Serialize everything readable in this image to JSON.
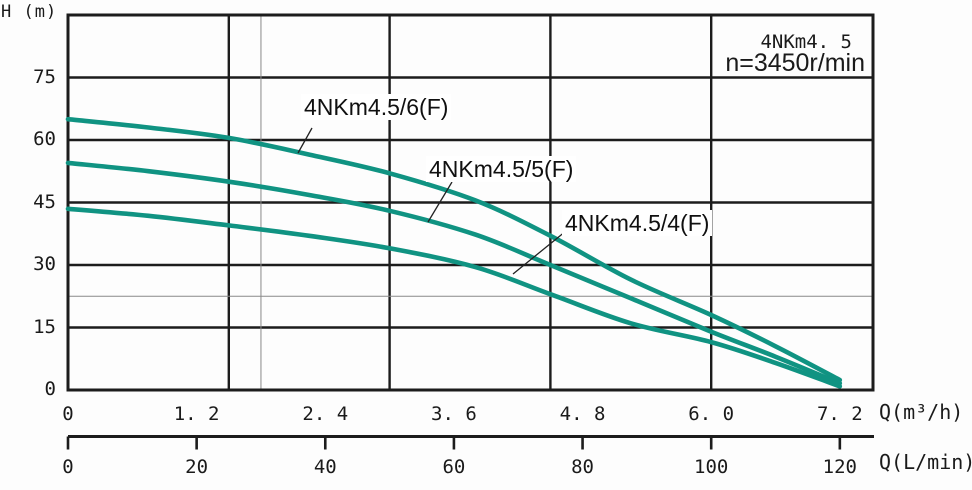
{
  "y_axis_title": "H (m)",
  "annotations": {
    "model": "4NKm4. 5",
    "speed": "n=3450r/min"
  },
  "axis_unit_labels": {
    "flow_m3h": "Q(m³/h)",
    "flow_lmin": "Q(L/min)"
  },
  "colors": {
    "curve": "#109382",
    "grid": "#1c1c1c",
    "reference_line": "#8a8a8a",
    "text": "#1a1a1a"
  },
  "chart_data": {
    "type": "line",
    "title": "4NKm4.5 pump performance curves, n=3450 r/min",
    "ylabel": "H (m)",
    "xlabel_primary": "Q(m³/h)",
    "xlabel_secondary": "Q(L/min)",
    "x_range_m3h": [
      0,
      7.51
    ],
    "y_range_m": [
      0,
      90
    ],
    "grid": "on",
    "grid_x_step_m3h": 1.5,
    "grid_y_step_m": 15,
    "y_ticks": [
      {
        "value": 75,
        "label": "75"
      },
      {
        "value": 60,
        "label": "60"
      },
      {
        "value": 45,
        "label": "45"
      },
      {
        "value": 30,
        "label": "30"
      },
      {
        "value": 15,
        "label": "15"
      },
      {
        "value": 0,
        "label": "0"
      }
    ],
    "x_ticks_m3h": [
      {
        "value": 0,
        "label": "0"
      },
      {
        "value": 1.2,
        "label": "1. 2"
      },
      {
        "value": 2.4,
        "label": "2. 4"
      },
      {
        "value": 3.6,
        "label": "3. 6"
      },
      {
        "value": 4.8,
        "label": "4. 8"
      },
      {
        "value": 6.0,
        "label": "6. 0"
      },
      {
        "value": 7.2,
        "label": "7. 2"
      }
    ],
    "x_ticks_lmin": [
      {
        "value": 0,
        "q_m3h": 0,
        "label": "0"
      },
      {
        "value": 20,
        "q_m3h": 1.2,
        "label": "20"
      },
      {
        "value": 40,
        "q_m3h": 2.4,
        "label": "40"
      },
      {
        "value": 60,
        "q_m3h": 3.6,
        "label": "60"
      },
      {
        "value": 80,
        "q_m3h": 4.8,
        "label": "80"
      },
      {
        "value": 100,
        "q_m3h": 6.0,
        "label": "100"
      },
      {
        "value": 120,
        "q_m3h": 7.2,
        "label": "120"
      }
    ],
    "reference_lines": {
      "vertical_q_m3h": 1.8,
      "horizontal_h_m": 22.5
    },
    "series": [
      {
        "name": "4NKm4.5/6(F)",
        "points": [
          [
            0,
            65
          ],
          [
            0.75,
            63
          ],
          [
            1.5,
            60.5
          ],
          [
            2.25,
            56.5
          ],
          [
            3,
            52
          ],
          [
            3.8,
            45.5
          ],
          [
            4.5,
            37
          ],
          [
            5.25,
            26.5
          ],
          [
            6,
            18
          ],
          [
            6.6,
            10.5
          ],
          [
            7.2,
            2.4
          ]
        ]
      },
      {
        "name": "4NKm4.5/5(F)",
        "points": [
          [
            0,
            54.5
          ],
          [
            0.75,
            52.5
          ],
          [
            1.5,
            50
          ],
          [
            2.25,
            46.8
          ],
          [
            3,
            43
          ],
          [
            3.8,
            37.3
          ],
          [
            4.5,
            30
          ],
          [
            5.25,
            22
          ],
          [
            6,
            14
          ],
          [
            6.6,
            8
          ],
          [
            7.2,
            1.6
          ]
        ]
      },
      {
        "name": "4NKm4.5/4(F)",
        "points": [
          [
            0,
            43.5
          ],
          [
            0.75,
            41.8
          ],
          [
            1.5,
            39.5
          ],
          [
            2.25,
            37
          ],
          [
            3,
            34
          ],
          [
            3.8,
            29.5
          ],
          [
            4.5,
            23
          ],
          [
            5.25,
            16
          ],
          [
            6,
            11.5
          ],
          [
            6.6,
            6.5
          ],
          [
            7.2,
            0.9
          ]
        ]
      }
    ]
  }
}
